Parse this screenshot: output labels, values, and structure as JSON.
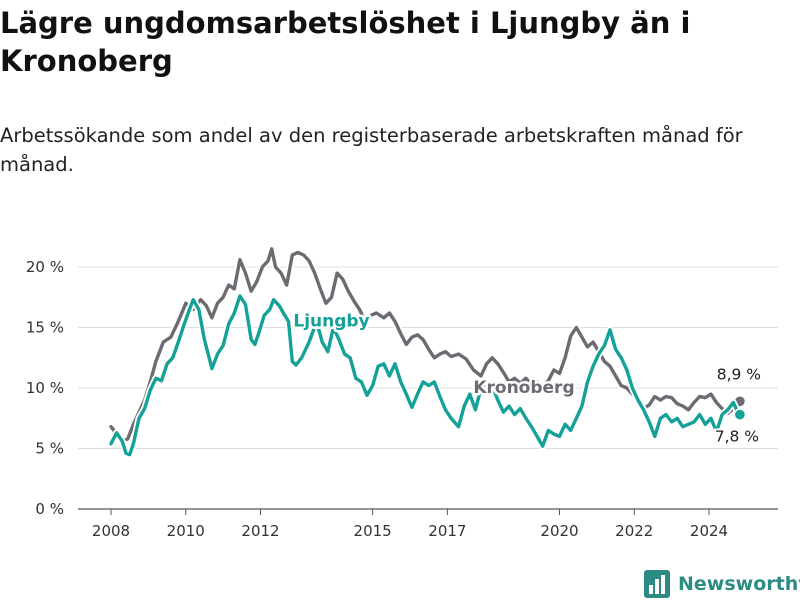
{
  "title": "Lägre ungdomsarbetslöshet i Ljungby än i Kronoberg",
  "subtitle": "Arbetssökande som andel av den registerbaserade arbetskraften månad för månad.",
  "brand": {
    "name": "Newsworthy",
    "color": "#2c8c84",
    "icon": "bar-chart-logo-icon"
  },
  "chart_data": {
    "type": "line",
    "ylim": [
      0,
      22
    ],
    "grid": true,
    "legend": "direct labels on lines",
    "y_ticks": [
      0,
      5,
      10,
      15,
      20
    ],
    "y_tick_labels": [
      "0 %",
      "5 %",
      "10 %",
      "15 %",
      "20 %"
    ],
    "x_ticks": [
      2008,
      2010,
      2012,
      2015,
      2017,
      2020,
      2022,
      2024
    ],
    "x_tick_labels": [
      "2008",
      "2010",
      "2012",
      "2015",
      "2017",
      "2020",
      "2022",
      "2024"
    ],
    "series": [
      {
        "name": "Kronoberg",
        "color": "#6e6a71",
        "last_value_label": "8,9 %",
        "points": [
          [
            2008.0,
            6.8
          ],
          [
            2008.15,
            6.2
          ],
          [
            2008.3,
            5.6
          ],
          [
            2008.45,
            5.8
          ],
          [
            2008.6,
            7.0
          ],
          [
            2008.75,
            8.0
          ],
          [
            2008.9,
            9.0
          ],
          [
            2009.05,
            10.5
          ],
          [
            2009.2,
            12.2
          ],
          [
            2009.4,
            13.8
          ],
          [
            2009.6,
            14.2
          ],
          [
            2009.8,
            15.5
          ],
          [
            2010.0,
            17.0
          ],
          [
            2010.2,
            16.5
          ],
          [
            2010.4,
            17.3
          ],
          [
            2010.55,
            16.8
          ],
          [
            2010.7,
            15.8
          ],
          [
            2010.85,
            17.0
          ],
          [
            2011.0,
            17.5
          ],
          [
            2011.15,
            18.5
          ],
          [
            2011.3,
            18.2
          ],
          [
            2011.45,
            20.6
          ],
          [
            2011.6,
            19.5
          ],
          [
            2011.75,
            18.0
          ],
          [
            2011.9,
            18.8
          ],
          [
            2012.05,
            20.0
          ],
          [
            2012.2,
            20.5
          ],
          [
            2012.3,
            21.5
          ],
          [
            2012.4,
            20.0
          ],
          [
            2012.55,
            19.5
          ],
          [
            2012.7,
            18.5
          ],
          [
            2012.85,
            21.0
          ],
          [
            2013.0,
            21.2
          ],
          [
            2013.15,
            21.0
          ],
          [
            2013.3,
            20.5
          ],
          [
            2013.45,
            19.5
          ],
          [
            2013.6,
            18.2
          ],
          [
            2013.75,
            17.0
          ],
          [
            2013.9,
            17.5
          ],
          [
            2014.05,
            19.5
          ],
          [
            2014.2,
            19.0
          ],
          [
            2014.35,
            18.0
          ],
          [
            2014.5,
            17.2
          ],
          [
            2014.65,
            16.5
          ],
          [
            2014.8,
            15.5
          ],
          [
            2014.95,
            16.0
          ],
          [
            2015.1,
            16.2
          ],
          [
            2015.3,
            15.8
          ],
          [
            2015.45,
            16.2
          ],
          [
            2015.6,
            15.5
          ],
          [
            2015.75,
            14.5
          ],
          [
            2015.9,
            13.6
          ],
          [
            2016.05,
            14.2
          ],
          [
            2016.2,
            14.4
          ],
          [
            2016.35,
            14.0
          ],
          [
            2016.5,
            13.2
          ],
          [
            2016.65,
            12.5
          ],
          [
            2016.8,
            12.8
          ],
          [
            2016.95,
            13.0
          ],
          [
            2017.1,
            12.6
          ],
          [
            2017.3,
            12.8
          ],
          [
            2017.5,
            12.4
          ],
          [
            2017.7,
            11.5
          ],
          [
            2017.9,
            11.0
          ],
          [
            2018.05,
            12.0
          ],
          [
            2018.2,
            12.5
          ],
          [
            2018.35,
            12.0
          ],
          [
            2018.5,
            11.3
          ],
          [
            2018.65,
            10.5
          ],
          [
            2018.8,
            10.8
          ],
          [
            2018.95,
            10.4
          ],
          [
            2019.1,
            10.8
          ],
          [
            2019.25,
            10.3
          ],
          [
            2019.4,
            10.5
          ],
          [
            2019.55,
            10.2
          ],
          [
            2019.7,
            10.6
          ],
          [
            2019.85,
            11.5
          ],
          [
            2020.0,
            11.2
          ],
          [
            2020.15,
            12.5
          ],
          [
            2020.3,
            14.3
          ],
          [
            2020.45,
            15.0
          ],
          [
            2020.6,
            14.2
          ],
          [
            2020.75,
            13.4
          ],
          [
            2020.9,
            13.8
          ],
          [
            2021.05,
            13.0
          ],
          [
            2021.2,
            12.2
          ],
          [
            2021.35,
            11.8
          ],
          [
            2021.5,
            11.0
          ],
          [
            2021.65,
            10.2
          ],
          [
            2021.8,
            10.0
          ],
          [
            2021.95,
            9.5
          ],
          [
            2022.1,
            9.0
          ],
          [
            2022.25,
            8.3
          ],
          [
            2022.4,
            8.6
          ],
          [
            2022.55,
            9.3
          ],
          [
            2022.7,
            9.0
          ],
          [
            2022.85,
            9.3
          ],
          [
            2023.0,
            9.2
          ],
          [
            2023.15,
            8.7
          ],
          [
            2023.3,
            8.5
          ],
          [
            2023.45,
            8.2
          ],
          [
            2023.6,
            8.8
          ],
          [
            2023.75,
            9.3
          ],
          [
            2023.9,
            9.2
          ],
          [
            2024.05,
            9.5
          ],
          [
            2024.2,
            8.8
          ],
          [
            2024.35,
            8.3
          ],
          [
            2024.5,
            7.9
          ],
          [
            2024.65,
            8.3
          ],
          [
            2024.8,
            8.9
          ]
        ]
      },
      {
        "name": "Ljungby",
        "color": "#14a198",
        "last_value_label": "7,8 %",
        "points": [
          [
            2008.0,
            5.4
          ],
          [
            2008.15,
            6.3
          ],
          [
            2008.3,
            5.6
          ],
          [
            2008.4,
            4.6
          ],
          [
            2008.5,
            4.5
          ],
          [
            2008.6,
            5.4
          ],
          [
            2008.75,
            7.5
          ],
          [
            2008.9,
            8.3
          ],
          [
            2009.05,
            9.8
          ],
          [
            2009.2,
            10.8
          ],
          [
            2009.35,
            10.6
          ],
          [
            2009.5,
            12.0
          ],
          [
            2009.65,
            12.5
          ],
          [
            2009.8,
            13.8
          ],
          [
            2009.95,
            15.2
          ],
          [
            2010.1,
            16.5
          ],
          [
            2010.2,
            17.3
          ],
          [
            2010.35,
            16.5
          ],
          [
            2010.5,
            14.0
          ],
          [
            2010.6,
            12.8
          ],
          [
            2010.7,
            11.6
          ],
          [
            2010.85,
            12.8
          ],
          [
            2011.0,
            13.5
          ],
          [
            2011.15,
            15.3
          ],
          [
            2011.3,
            16.2
          ],
          [
            2011.45,
            17.6
          ],
          [
            2011.6,
            16.9
          ],
          [
            2011.75,
            14.0
          ],
          [
            2011.85,
            13.6
          ],
          [
            2011.95,
            14.5
          ],
          [
            2012.1,
            16.0
          ],
          [
            2012.25,
            16.5
          ],
          [
            2012.35,
            17.3
          ],
          [
            2012.5,
            16.8
          ],
          [
            2012.65,
            16.0
          ],
          [
            2012.75,
            15.5
          ],
          [
            2012.85,
            12.2
          ],
          [
            2012.95,
            11.9
          ],
          [
            2013.1,
            12.5
          ],
          [
            2013.3,
            13.8
          ],
          [
            2013.5,
            15.5
          ],
          [
            2013.65,
            13.8
          ],
          [
            2013.8,
            13.0
          ],
          [
            2013.95,
            15.0
          ],
          [
            2014.1,
            14.0
          ],
          [
            2014.25,
            12.8
          ],
          [
            2014.4,
            12.5
          ],
          [
            2014.55,
            10.8
          ],
          [
            2014.7,
            10.5
          ],
          [
            2014.85,
            9.4
          ],
          [
            2015.0,
            10.2
          ],
          [
            2015.15,
            11.8
          ],
          [
            2015.3,
            12.0
          ],
          [
            2015.45,
            11.0
          ],
          [
            2015.6,
            12.0
          ],
          [
            2015.75,
            10.5
          ],
          [
            2015.9,
            9.5
          ],
          [
            2016.05,
            8.4
          ],
          [
            2016.2,
            9.5
          ],
          [
            2016.35,
            10.5
          ],
          [
            2016.5,
            10.2
          ],
          [
            2016.65,
            10.5
          ],
          [
            2016.8,
            9.3
          ],
          [
            2016.95,
            8.2
          ],
          [
            2017.1,
            7.5
          ],
          [
            2017.3,
            6.8
          ],
          [
            2017.45,
            8.5
          ],
          [
            2017.6,
            9.5
          ],
          [
            2017.75,
            8.2
          ],
          [
            2017.9,
            10.0
          ],
          [
            2018.05,
            10.4
          ],
          [
            2018.2,
            10.2
          ],
          [
            2018.35,
            9.0
          ],
          [
            2018.5,
            8.0
          ],
          [
            2018.65,
            8.5
          ],
          [
            2018.8,
            7.8
          ],
          [
            2018.95,
            8.3
          ],
          [
            2019.1,
            7.5
          ],
          [
            2019.25,
            6.8
          ],
          [
            2019.4,
            6.0
          ],
          [
            2019.55,
            5.2
          ],
          [
            2019.7,
            6.5
          ],
          [
            2019.85,
            6.2
          ],
          [
            2020.0,
            6.0
          ],
          [
            2020.15,
            7.0
          ],
          [
            2020.3,
            6.5
          ],
          [
            2020.45,
            7.5
          ],
          [
            2020.6,
            8.5
          ],
          [
            2020.75,
            10.5
          ],
          [
            2020.9,
            11.8
          ],
          [
            2021.05,
            12.8
          ],
          [
            2021.2,
            13.5
          ],
          [
            2021.35,
            14.8
          ],
          [
            2021.5,
            13.2
          ],
          [
            2021.65,
            12.5
          ],
          [
            2021.8,
            11.5
          ],
          [
            2021.95,
            10.0
          ],
          [
            2022.1,
            9.0
          ],
          [
            2022.25,
            8.2
          ],
          [
            2022.4,
            7.2
          ],
          [
            2022.55,
            6.0
          ],
          [
            2022.7,
            7.5
          ],
          [
            2022.85,
            7.8
          ],
          [
            2023.0,
            7.2
          ],
          [
            2023.15,
            7.5
          ],
          [
            2023.3,
            6.8
          ],
          [
            2023.45,
            7.0
          ],
          [
            2023.6,
            7.2
          ],
          [
            2023.75,
            7.8
          ],
          [
            2023.9,
            7.0
          ],
          [
            2024.05,
            7.5
          ],
          [
            2024.2,
            6.4
          ],
          [
            2024.35,
            7.8
          ],
          [
            2024.5,
            8.2
          ],
          [
            2024.65,
            8.8
          ],
          [
            2024.8,
            7.8
          ]
        ]
      }
    ],
    "annotations": [
      {
        "text": "Ljungby",
        "series": "Ljungby",
        "x": 2013.9,
        "y": 15.1
      },
      {
        "text": "Kronoberg",
        "series": "Kronoberg",
        "x": 2019.05,
        "y": 9.6
      }
    ]
  }
}
